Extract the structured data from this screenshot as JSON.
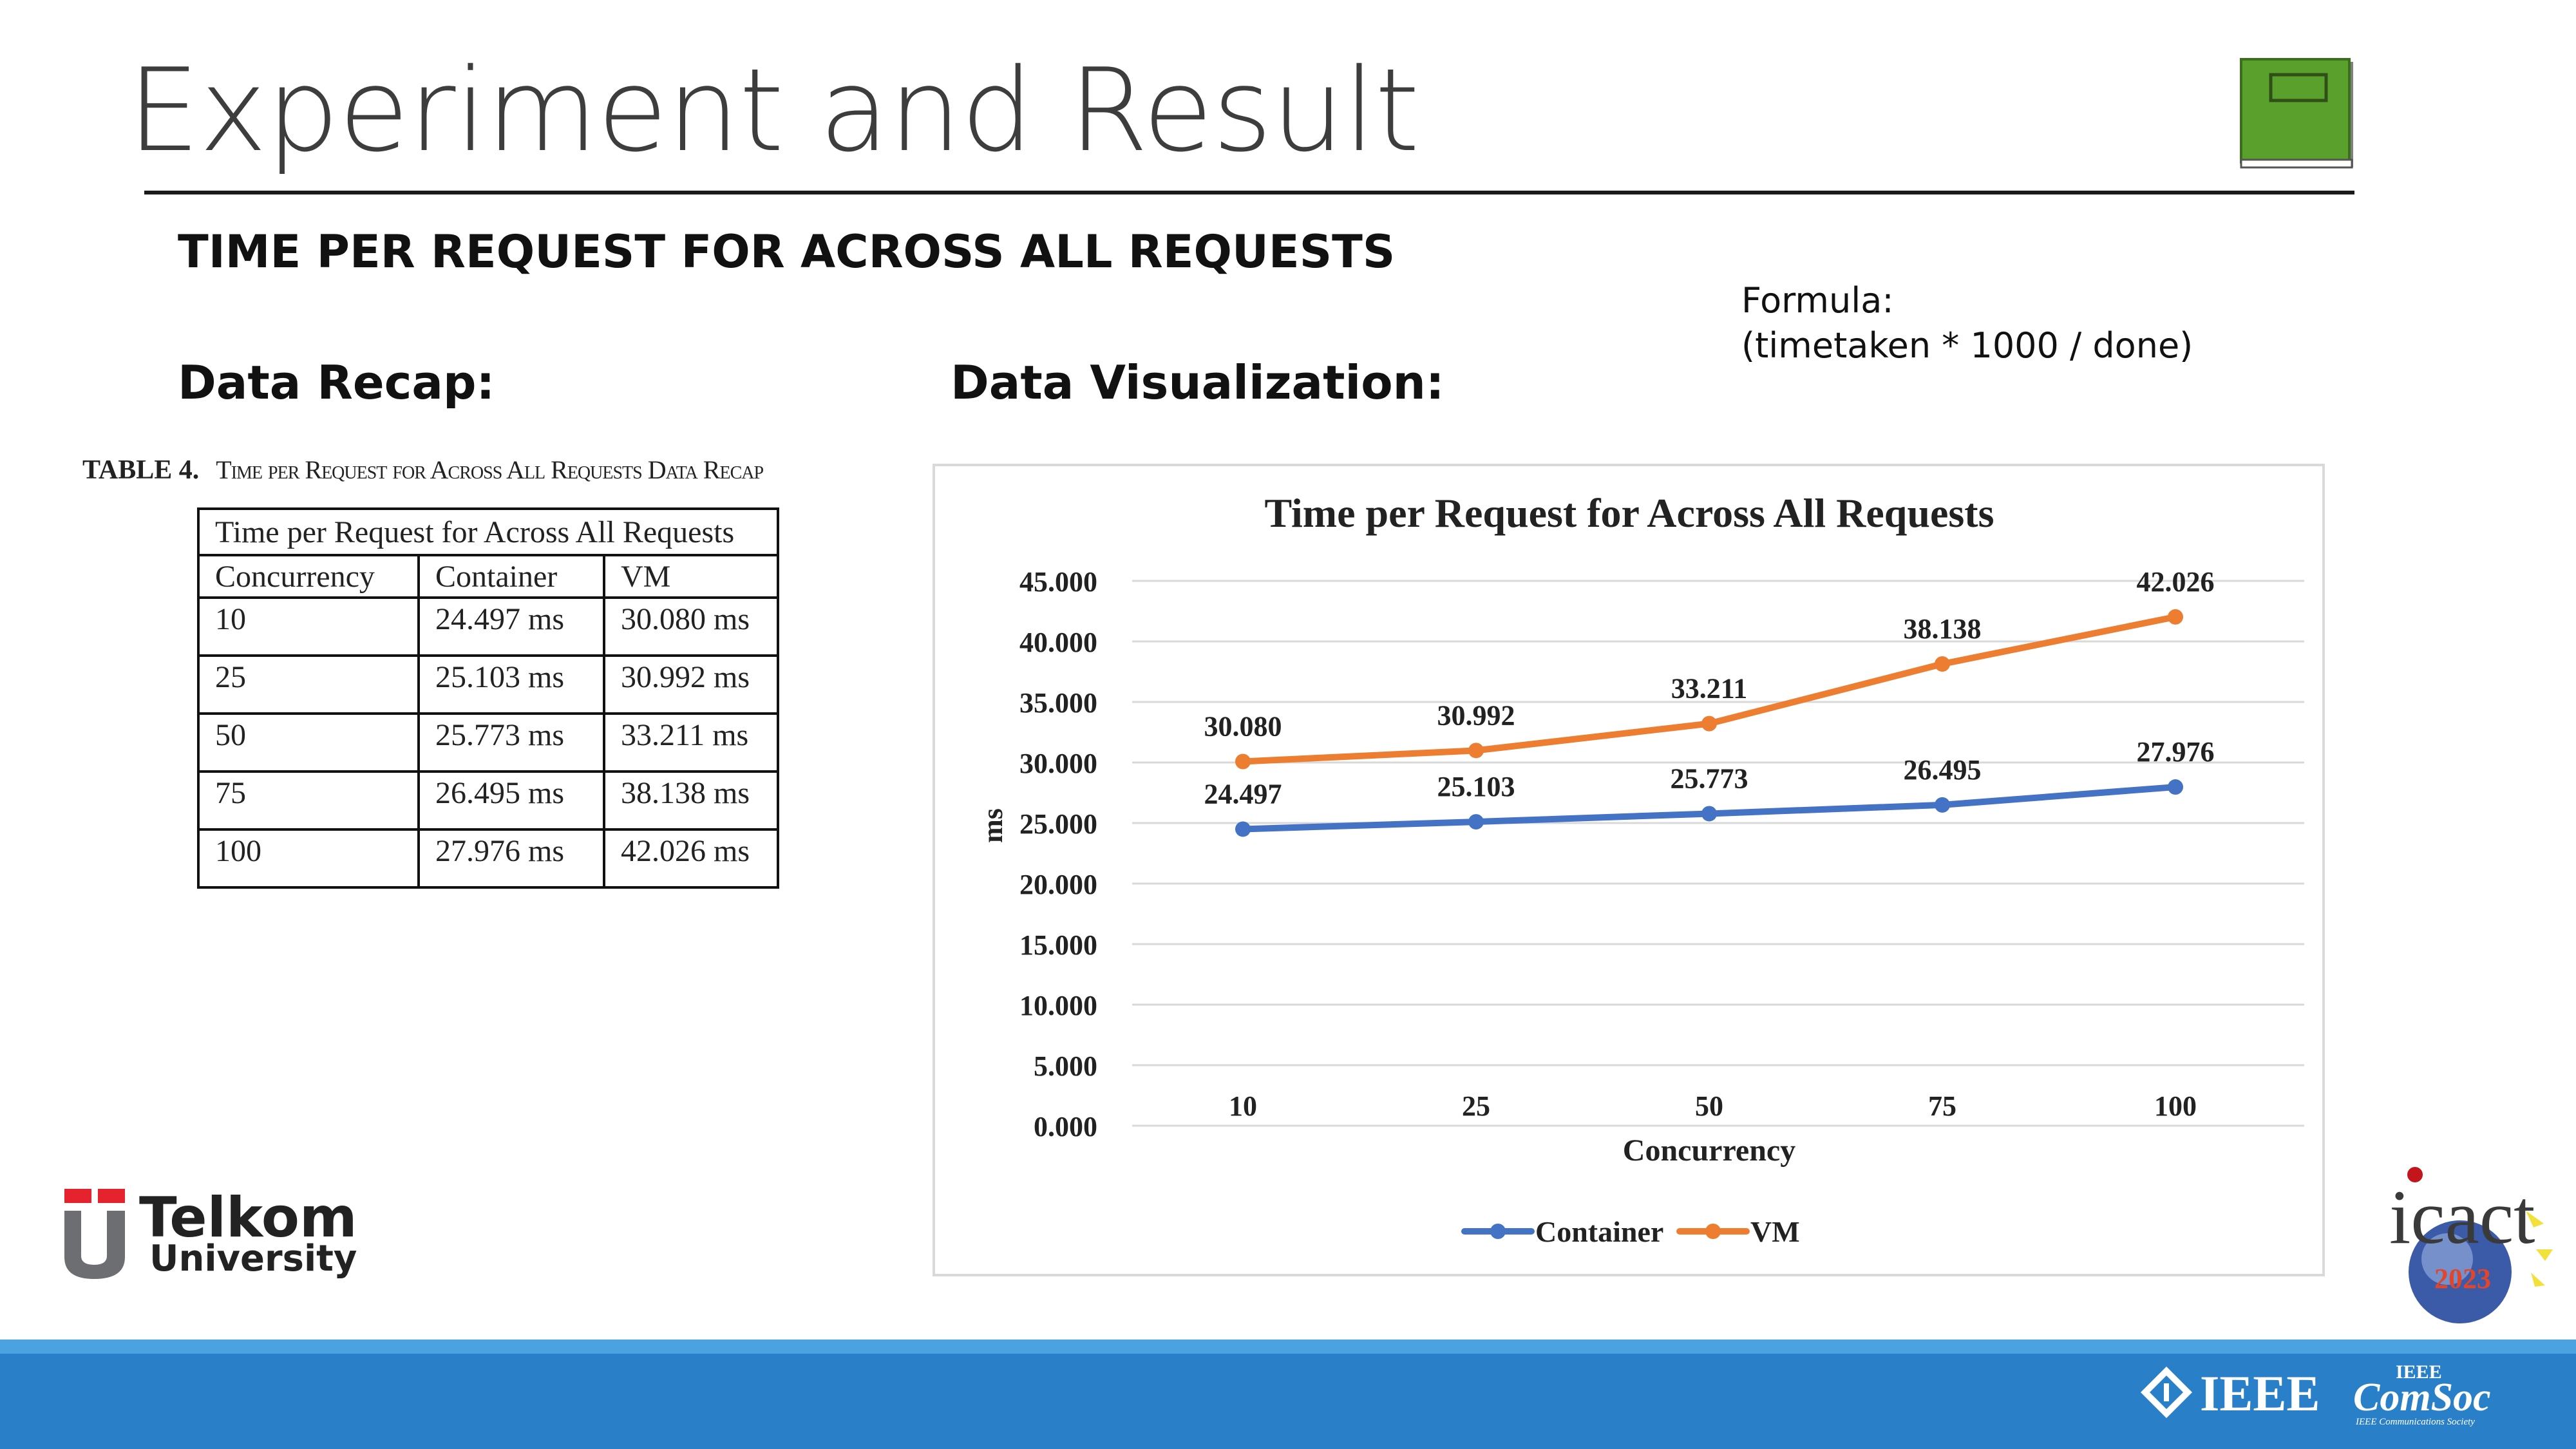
{
  "slide": {
    "title": "Experiment and Result",
    "section_heading": "TIME PER REQUEST FOR ACROSS ALL REQUESTS",
    "data_recap_label": "Data Recap:",
    "data_visualization_label": "Data Visualization:",
    "formula_label": "Formula:",
    "formula_text": "(timetaken * 1000 / done)"
  },
  "table": {
    "number": "TABLE 4.",
    "caption": "Time per Request for Across All Requests Data Recap",
    "title": "Time per Request for Across All Requests",
    "columns": [
      "Concurrency",
      "Container",
      "VM"
    ],
    "rows": [
      [
        "10",
        "24.497 ms",
        "30.080 ms"
      ],
      [
        "25",
        "25.103 ms",
        "30.992 ms"
      ],
      [
        "50",
        "25.773 ms",
        "33.211 ms"
      ],
      [
        "75",
        "26.495 ms",
        "38.138 ms"
      ],
      [
        "100",
        "27.976 ms",
        "42.026 ms"
      ]
    ]
  },
  "chart_data": {
    "type": "line",
    "title": "Time per Request for Across All Requests",
    "xlabel": "Concurrency",
    "ylabel": "ms",
    "categories": [
      "10",
      "25",
      "50",
      "75",
      "100"
    ],
    "ylim": [
      0,
      45
    ],
    "yticks": [
      "0.000",
      "5.000",
      "10.000",
      "15.000",
      "20.000",
      "25.000",
      "30.000",
      "35.000",
      "40.000",
      "45.000"
    ],
    "grid": true,
    "legend_position": "bottom",
    "series": [
      {
        "name": "Container",
        "color": "#4472c4",
        "values": [
          24.497,
          25.103,
          25.773,
          26.495,
          27.976
        ],
        "labels": [
          "24.497",
          "25.103",
          "25.773",
          "26.495",
          "27.976"
        ]
      },
      {
        "name": "VM",
        "color": "#ed7d31",
        "values": [
          30.08,
          30.992,
          33.211,
          38.138,
          42.026
        ],
        "labels": [
          "30.080",
          "30.992",
          "33.211",
          "38.138",
          "42.026"
        ]
      }
    ]
  },
  "footer": {
    "brand_name": "Telkom",
    "brand_sub": "University",
    "band_color": "#2980c9",
    "logos": [
      "telkom-university-logo",
      "icact-2023-logo",
      "ieee-logo",
      "ieee-comsoc-logo"
    ],
    "icact_text": "icact",
    "icact_year": "2023",
    "ieee_text": "IEEE",
    "comsoc_top": "IEEE",
    "comsoc_text": "ComSoc",
    "comsoc_sub": "IEEE Communications Society"
  }
}
